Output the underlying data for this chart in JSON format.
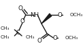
{
  "line_color": "#1a1a1a",
  "lw": 1.0,
  "font_size": 5.8,
  "bg": "white",
  "atoms": {
    "NH_label": "NH",
    "O1_label": "O",
    "O2_label": "O",
    "O3_label": "O",
    "O4_label": "O",
    "OCH3_top": "OCH₃",
    "OCH3_bot": "OCH₃"
  }
}
